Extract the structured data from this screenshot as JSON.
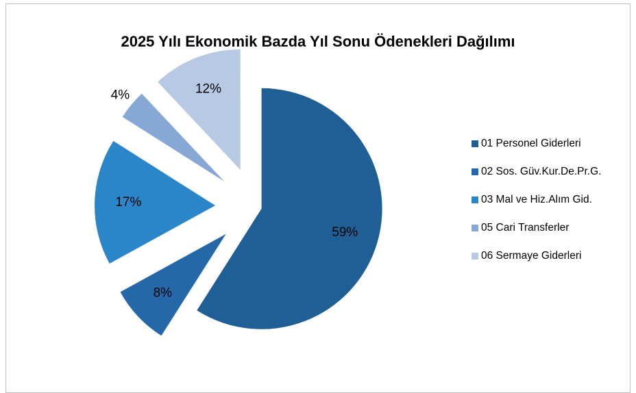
{
  "chart_data": {
    "type": "pie",
    "title": "2025 Yılı Ekonomik Bazda Yıl Sonu Ödenekleri Dağılımı",
    "categories": [
      "01  Personel Giderleri",
      "02 Sos. Güv.Kur.De.Pr.G.",
      "03 Mal ve Hiz.Alım Gid.",
      "05 Cari Transferler",
      "06 Sermaye Giderleri"
    ],
    "values": [
      59,
      8,
      17,
      4,
      12
    ],
    "value_labels": [
      "59%",
      "8%",
      "17%",
      "4%",
      "12%"
    ],
    "colors": [
      "#1f5f96",
      "#2468aa",
      "#2a86c9",
      "#87a8d4",
      "#b8c9e3"
    ],
    "legend": "right"
  }
}
